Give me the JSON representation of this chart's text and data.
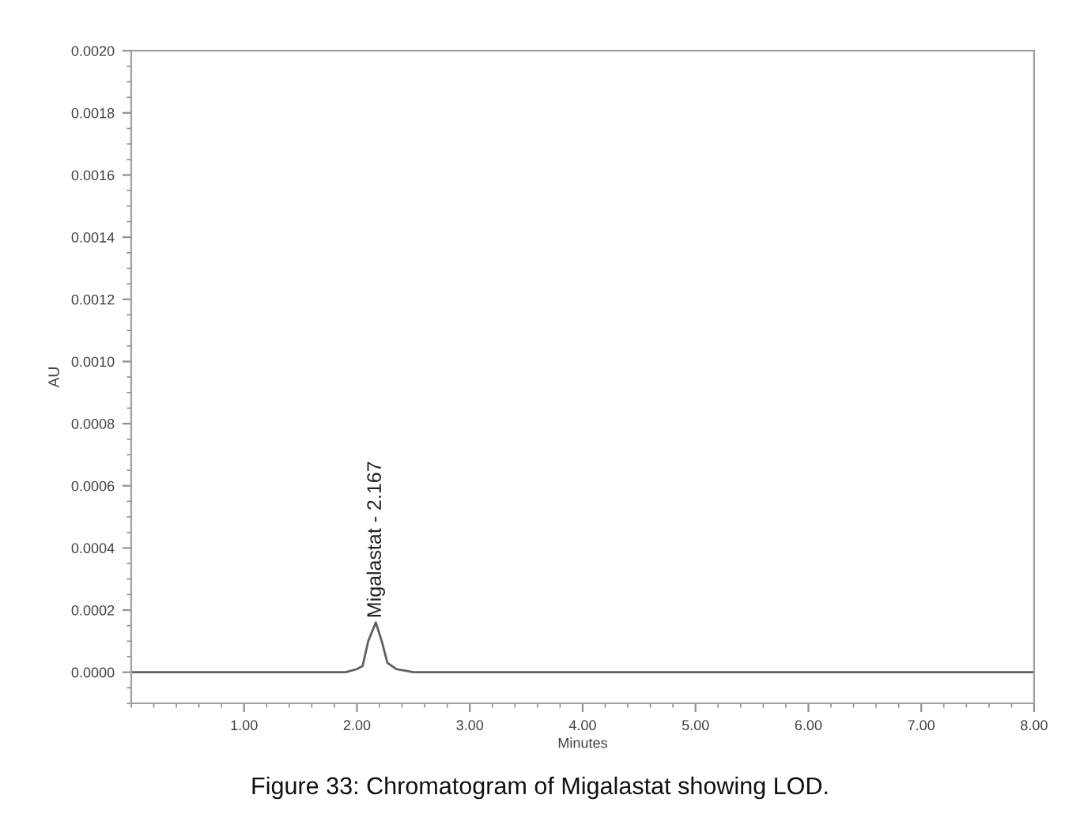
{
  "chart_data": {
    "type": "line",
    "xlabel": "Minutes",
    "ylabel": "AU",
    "x": [
      0,
      0.5,
      1.0,
      1.5,
      1.9,
      2.0,
      2.05,
      2.1,
      2.167,
      2.22,
      2.27,
      2.35,
      2.5,
      3.0,
      4.0,
      5.0,
      6.0,
      7.0,
      8.0
    ],
    "series": [
      {
        "color": "#606060",
        "values": [
          0,
          0,
          0,
          0,
          0.0,
          1e-05,
          2e-05,
          0.0001,
          0.00016,
          0.0001,
          3e-05,
          1e-05,
          0.0,
          0,
          0,
          0,
          0,
          0,
          0
        ]
      }
    ],
    "xlim": [
      0,
      8
    ],
    "xticks": [
      {
        "value": 1,
        "label": "1.00"
      },
      {
        "value": 2,
        "label": "2.00"
      },
      {
        "value": 3,
        "label": "3.00"
      },
      {
        "value": 4,
        "label": "4.00"
      },
      {
        "value": 5,
        "label": "5.00"
      },
      {
        "value": 6,
        "label": "6.00"
      },
      {
        "value": 7,
        "label": "7.00"
      },
      {
        "value": 8,
        "label": "8.00"
      }
    ],
    "ylim": [
      -0.0001,
      0.002
    ],
    "yticks": [
      {
        "value": 0,
        "label": "0.0000"
      },
      {
        "value": 0.0002,
        "label": "0.0002"
      },
      {
        "value": 0.0004,
        "label": "0.0004"
      },
      {
        "value": 0.0006,
        "label": "0.0006"
      },
      {
        "value": 0.0008,
        "label": "0.0008"
      },
      {
        "value": 0.001,
        "label": "0.0010"
      },
      {
        "value": 0.0012,
        "label": "0.0012"
      },
      {
        "value": 0.0014,
        "label": "0.0014"
      },
      {
        "value": 0.0016,
        "label": "0.0016"
      },
      {
        "value": 0.0018,
        "label": "0.0018"
      },
      {
        "value": 0.002,
        "label": "0.0020"
      }
    ],
    "grid": false,
    "marker": "none",
    "line_style": "solid",
    "annotations": [
      {
        "text": "Migalastat - 2.167",
        "x": 2.167,
        "y": 0.00016
      },
      "Figure 33: Chromatogram of Migalastat showing LOD."
    ]
  }
}
